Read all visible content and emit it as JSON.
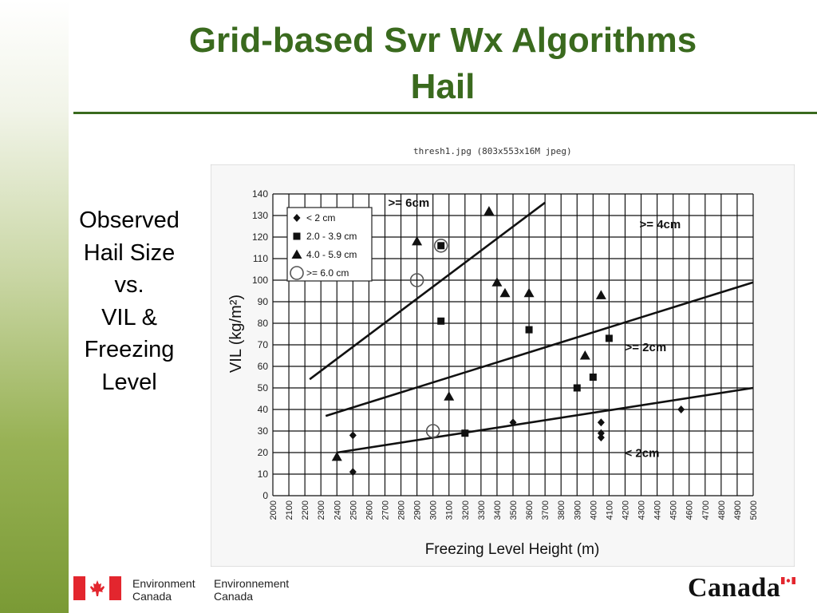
{
  "slide": {
    "title_line1": "Grid-based Svr Wx Algorithms",
    "title_line2": "Hail",
    "side_text": [
      "Observed",
      "Hail Size",
      "vs.",
      "VIL &",
      "Freezing",
      "Level"
    ],
    "image_caption": "thresh1.jpg (803x553x16M jpeg)",
    "colors": {
      "title": "#3a6a1e",
      "rule": "#3a6a1e",
      "flag_red": "#e3262e"
    }
  },
  "footer": {
    "dept_en_line1": "Environment",
    "dept_en_line2": "Canada",
    "dept_fr_line1": "Environnement",
    "dept_fr_line2": "Canada",
    "wordmark": "Canada",
    "icons": [
      "canada-flag-icon",
      "canada-wordmark-flag-icon"
    ]
  },
  "chart_data": {
    "type": "scatter",
    "xlabel": "Freezing Level Height (m)",
    "ylabel": "VIL (kg/m²)",
    "xlim": [
      2000,
      5000
    ],
    "ylim": [
      0,
      140
    ],
    "x_ticks": [
      2000,
      2100,
      2200,
      2300,
      2400,
      2500,
      2600,
      2700,
      2800,
      2900,
      3000,
      3100,
      3200,
      3300,
      3400,
      3500,
      3600,
      3700,
      3800,
      3900,
      4000,
      4100,
      4200,
      4300,
      4400,
      4500,
      4600,
      4700,
      4800,
      4900,
      5000
    ],
    "y_ticks": [
      0,
      10,
      20,
      30,
      40,
      50,
      60,
      70,
      80,
      90,
      100,
      110,
      120,
      130,
      140
    ],
    "grid": true,
    "legend_position": "top-left",
    "series": [
      {
        "name": "< 2 cm",
        "marker": "diamond",
        "points": [
          [
            2500,
            28
          ],
          [
            2500,
            11
          ],
          [
            3500,
            34
          ],
          [
            4050,
            34
          ],
          [
            4050,
            29
          ],
          [
            4050,
            27
          ],
          [
            4550,
            40
          ]
        ]
      },
      {
        "name": "2.0 - 3.9 cm",
        "marker": "square",
        "points": [
          [
            3050,
            116
          ],
          [
            3050,
            81
          ],
          [
            3200,
            29
          ],
          [
            3600,
            77
          ],
          [
            3900,
            50
          ],
          [
            4000,
            55
          ],
          [
            4100,
            73
          ]
        ]
      },
      {
        "name": "4.0 - 5.9 cm",
        "marker": "triangle",
        "points": [
          [
            2400,
            18
          ],
          [
            2900,
            118
          ],
          [
            3100,
            46
          ],
          [
            3350,
            132
          ],
          [
            3400,
            99
          ],
          [
            3450,
            94
          ],
          [
            3600,
            94
          ],
          [
            3950,
            65
          ],
          [
            4050,
            93
          ]
        ]
      },
      {
        "name": ">= 6.0 cm",
        "marker": "circle",
        "points": [
          [
            3050,
            116
          ],
          [
            2900,
            100
          ],
          [
            3000,
            30
          ]
        ]
      }
    ],
    "threshold_lines": [
      {
        "label": ">= 6cm",
        "from": [
          2230,
          54
        ],
        "to": [
          3700,
          136
        ],
        "label_at": [
          2720,
          134
        ]
      },
      {
        "label": ">= 4cm",
        "from": [
          2330,
          37
        ],
        "to": [
          5000,
          99
        ],
        "label_at": [
          4290,
          124
        ]
      },
      {
        "label": ">= 2cm",
        "from": [
          2400,
          20
        ],
        "to": [
          5000,
          50
        ],
        "label_at": [
          4200,
          67
        ]
      },
      {
        "label": "< 2cm",
        "label_at": [
          4200,
          18
        ]
      }
    ]
  }
}
